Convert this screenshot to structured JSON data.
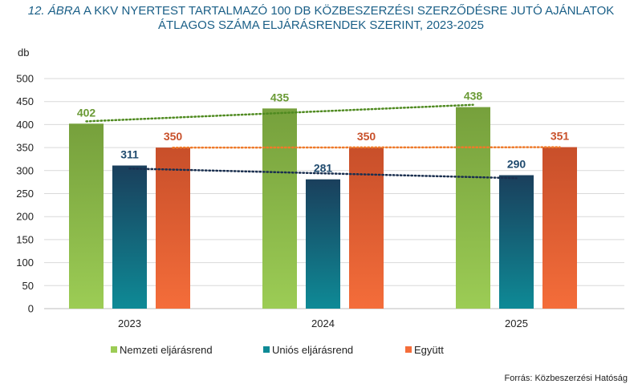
{
  "title": {
    "prefix": "12. ÁBRA",
    "line1": "A KKV NYERTEST TARTALMAZÓ 100 DB KÖZBESZERZÉSI SZERZŐDÉSRE JUTÓ AJÁNLATOK",
    "line2": "ÁTLAGOS SZÁMA ELJÁRÁSRENDEK SZERINT, 2023-2025"
  },
  "source": "Forrás: Közbeszerzési Hatóság",
  "chart_data": {
    "type": "bar",
    "title": "12. ÁBRA A KKV NYERTEST TARTALMAZÓ 100 DB KÖZBESZERZÉSI SZERZŐDÉSRE JUTÓ AJÁNLATOK ÁTLAGOS SZÁMA ELJÁRÁSRENDEK SZERINT, 2023-2025",
    "ylabel": "db",
    "xlabel": "",
    "categories": [
      "2023",
      "2024",
      "2025"
    ],
    "ylim": [
      0,
      500
    ],
    "yticks": [
      0,
      50,
      100,
      150,
      200,
      250,
      300,
      350,
      400,
      450,
      500
    ],
    "grid": true,
    "legend_position": "bottom",
    "trendlines": true,
    "series": [
      {
        "name": "Nemzeti eljárásrend",
        "values": [
          402,
          435,
          438
        ],
        "color_top": "#76a03c",
        "color_bottom": "#9ccc55",
        "label_color": "#6a9a35",
        "trend_color": "#4f8a20"
      },
      {
        "name": "Uniós eljárásrend",
        "values": [
          311,
          281,
          290
        ],
        "color_top": "#1a3f5c",
        "color_bottom": "#0e8a96",
        "label_color": "#1f4a6e",
        "trend_color": "#1a2f4f"
      },
      {
        "name": "Együtt",
        "values": [
          350,
          350,
          351
        ],
        "color_top": "#c84f2a",
        "color_bottom": "#f46d3a",
        "label_color": "#c8502a",
        "trend_color": "#ef7a2a"
      }
    ]
  }
}
